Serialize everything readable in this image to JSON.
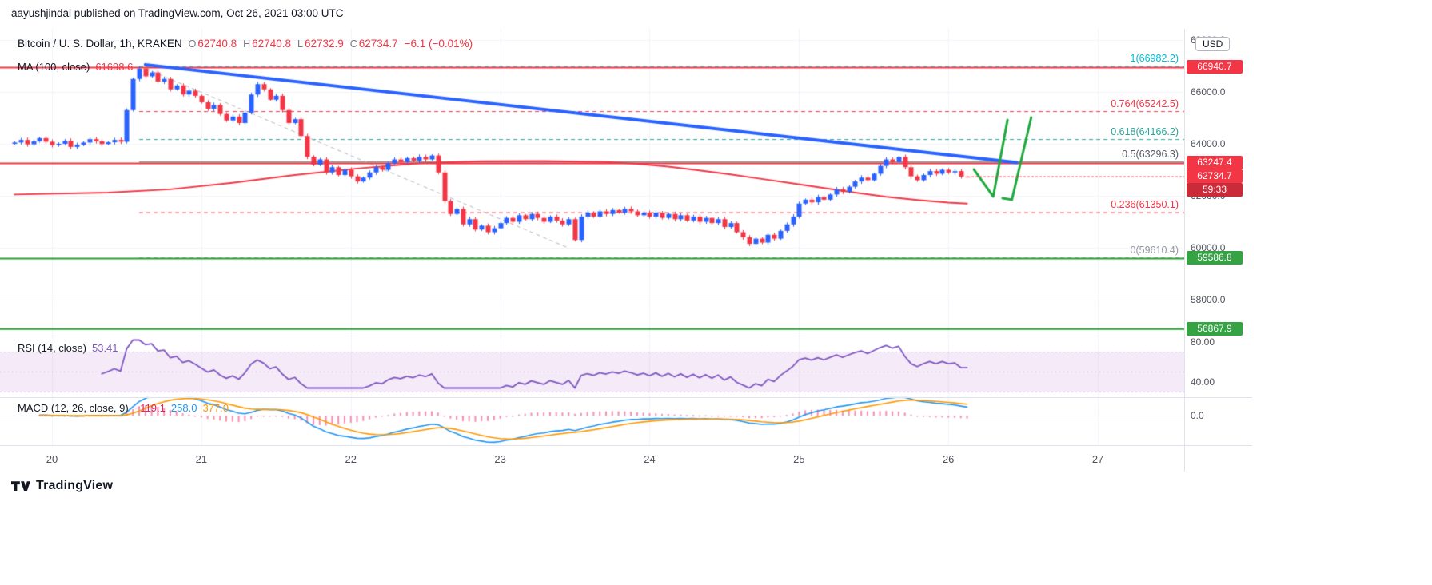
{
  "attribution": "aayushjindal published on TradingView.com, Oct 26, 2021 03:00 UTC",
  "header": {
    "symbol_title": "Bitcoin / U. S. Dollar, 1h, KRAKEN",
    "ohlc": [
      {
        "label": "O",
        "value": "62740.8"
      },
      {
        "label": "H",
        "value": "62740.8"
      },
      {
        "label": "L",
        "value": "62732.9"
      },
      {
        "label": "C",
        "value": "62734.7"
      }
    ],
    "change": "−6.1 (−0.01%)"
  },
  "ma_legend": {
    "label": "MA (100, close)",
    "value": "61698.6"
  },
  "rsi_legend": {
    "label": "RSI (14, close)",
    "value": "53.41"
  },
  "macd_legend": {
    "label": "MACD (12, 26, close, 9)",
    "values": [
      {
        "text": "−119.1",
        "color": "#e91e63"
      },
      {
        "text": "258.0",
        "color": "#2196f3"
      },
      {
        "text": "377.0",
        "color": "#ff9800"
      }
    ]
  },
  "fib_labels": [
    {
      "text": "1(66982.2)",
      "price": 66982.2,
      "color": "#00bcd4"
    },
    {
      "text": "0.764(65242.5)",
      "price": 65242.5,
      "color": "#f23645"
    },
    {
      "text": "0.618(64166.2)",
      "price": 64166.2,
      "color": "#26a69a"
    },
    {
      "text": "0.5(63296.3)",
      "price": 63296.3,
      "color": "#555a64"
    },
    {
      "text": "0.236(61350.1)",
      "price": 61350.1,
      "color": "#f23645"
    },
    {
      "text": "0(59610.4)",
      "price": 59610.4,
      "color": "#9598a1"
    }
  ],
  "price_axis": {
    "currency_button": "USD",
    "labels": [
      {
        "text": "68000.0",
        "price": 68000
      },
      {
        "text": "66000.0",
        "price": 66000
      },
      {
        "text": "64000.0",
        "price": 64000
      },
      {
        "text": "62000.0",
        "price": 62000
      },
      {
        "text": "60000.0",
        "price": 60000
      },
      {
        "text": "58000.0",
        "price": 58000
      }
    ],
    "badges": [
      {
        "text": "66940.7",
        "price": 66940.7,
        "bg": "#f23645"
      },
      {
        "text": "63247.4",
        "price": 63247.4,
        "bg": "#f23645"
      },
      {
        "text": "62734.7",
        "price": 62734.7,
        "bg": "#f23645"
      },
      {
        "text": "59:33",
        "price": 62734.7,
        "bg": "#c92b38",
        "offset": 17
      },
      {
        "text": "59586.8",
        "price": 59586.8,
        "bg": "#35a344"
      },
      {
        "text": "56867.9",
        "price": 56867.9,
        "bg": "#35a344"
      }
    ]
  },
  "rsi_axis": [
    {
      "text": "80.00",
      "value": 80
    },
    {
      "text": "40.00",
      "value": 40
    }
  ],
  "macd_axis": [
    {
      "text": "0.0",
      "value": 0
    }
  ],
  "time_axis": [
    "20",
    "21",
    "22",
    "23",
    "24",
    "25",
    "26",
    "27"
  ],
  "footer": {
    "brand": "TradingView"
  },
  "palette": {
    "up": "#2962ff",
    "down": "#f23645",
    "ma": "#f23645",
    "grid": "#f0f3fa",
    "rsi": "#7e57c2",
    "rsi_band": "rgba(186,104,200,0.14)",
    "rsi_band_edge": "#d3b8e0",
    "macd_line": "#2196f3",
    "macd_signal": "#ff9800",
    "macd_hist": "rgba(233,30,99,0.5)"
  },
  "chart_data": {
    "type": "candlestick",
    "symbol": "Bitcoin / U. S. Dollar",
    "exchange": "KRAKEN",
    "interval": "1h",
    "timestamp": "Oct 26, 2021 03:00 UTC",
    "last": {
      "o": 62740.8,
      "h": 62740.8,
      "l": 62732.9,
      "c": 62734.7,
      "change": -6.1,
      "change_pct": -0.01
    },
    "ylabel": "USD",
    "ylim_visible": [
      56600,
      68400
    ],
    "x_days_visible": [
      20,
      27
    ],
    "first_open": 64000,
    "hours_per_day": 24,
    "day20_start_index": 6,
    "closes": [
      64050,
      64150,
      63980,
      64100,
      64220,
      64080,
      63950,
      64000,
      64120,
      63880,
      63960,
      64050,
      64180,
      64100,
      63990,
      64060,
      64150,
      64080,
      65300,
      66500,
      66900,
      66600,
      66750,
      66400,
      66500,
      66100,
      66250,
      65900,
      66050,
      65850,
      65600,
      65350,
      65500,
      65150,
      64900,
      65050,
      64800,
      65200,
      65900,
      66300,
      66100,
      65700,
      65850,
      65300,
      64800,
      64950,
      64300,
      63500,
      63200,
      63400,
      62900,
      63100,
      62800,
      63000,
      62750,
      62550,
      62700,
      62900,
      63100,
      63000,
      63250,
      63400,
      63300,
      63450,
      63350,
      63500,
      63400,
      63550,
      62900,
      61800,
      61300,
      61500,
      60900,
      61100,
      60700,
      60850,
      60600,
      60750,
      60950,
      61150,
      61000,
      61250,
      61100,
      61300,
      61150,
      61000,
      61200,
      61050,
      60900,
      61100,
      60300,
      61200,
      61350,
      61200,
      61400,
      61300,
      61450,
      61350,
      61500,
      61400,
      61250,
      61350,
      61200,
      61350,
      61150,
      61300,
      61100,
      61250,
      61050,
      61200,
      61000,
      61150,
      60950,
      61100,
      60800,
      60950,
      60600,
      60400,
      60150,
      60350,
      60200,
      60500,
      60350,
      60650,
      60900,
      61200,
      61700,
      61850,
      61750,
      61950,
      61850,
      62050,
      62250,
      62150,
      62350,
      62550,
      62700,
      62600,
      62850,
      63150,
      63400,
      63300,
      63500,
      63100,
      62750,
      62600,
      62800,
      62950,
      62850,
      63000,
      62900,
      62950,
      62740.8,
      62734.7
    ],
    "ma100_current": 61698.6,
    "ma100_points": [
      [
        0,
        62050
      ],
      [
        15,
        62120
      ],
      [
        25,
        62250
      ],
      [
        35,
        62500
      ],
      [
        45,
        62800
      ],
      [
        55,
        63050
      ],
      [
        65,
        63250
      ],
      [
        75,
        63330
      ],
      [
        85,
        63340
      ],
      [
        95,
        63300
      ],
      [
        100,
        63230
      ],
      [
        105,
        63120
      ],
      [
        110,
        62980
      ],
      [
        115,
        62820
      ],
      [
        120,
        62650
      ],
      [
        125,
        62480
      ],
      [
        130,
        62300
      ],
      [
        135,
        62120
      ],
      [
        140,
        61960
      ],
      [
        145,
        61840
      ],
      [
        150,
        61740
      ],
      [
        153,
        61698.6
      ]
    ],
    "fib_start_index": 20,
    "fib_levels": [
      {
        "level": 1,
        "price": 66982.2,
        "color": "#00bcd4",
        "style": "dashed"
      },
      {
        "level": 0.764,
        "price": 65242.5,
        "color": "#f23645",
        "style": "dashed"
      },
      {
        "level": 0.618,
        "price": 64166.2,
        "color": "#26a69a",
        "style": "dashed"
      },
      {
        "level": 0.5,
        "price": 63296.3,
        "color": "#555a64",
        "style": "solid"
      },
      {
        "level": 0.236,
        "price": 61350.1,
        "color": "#f23645",
        "style": "dashed"
      },
      {
        "level": 0,
        "price": 59610.4,
        "color": "#9598a1",
        "style": "dashed"
      }
    ],
    "hlines": [
      {
        "price": 66940.7,
        "color": "#f23645"
      },
      {
        "price": 63247.4,
        "color": "#f23645"
      },
      {
        "price": 59586.8,
        "color": "#28a035"
      },
      {
        "price": 56867.9,
        "color": "#28a035"
      }
    ],
    "trendline": {
      "from": [
        21,
        67050
      ],
      "to": [
        161,
        63280
      ],
      "color": "#2962ff",
      "width": 4
    },
    "dashed_line": {
      "from": [
        21,
        66900
      ],
      "to": [
        89,
        59990
      ],
      "color": "#b2b5be"
    },
    "green_color": "#1fa83c",
    "green_marks": [
      {
        "points": [
          [
            154.1,
            63015
          ],
          [
            157.2,
            61970
          ],
          [
            159.5,
            64920
          ]
        ]
      },
      {
        "points": [
          [
            158.7,
            61910
          ],
          [
            160.2,
            61850
          ],
          [
            163.3,
            65015
          ]
        ]
      }
    ],
    "rsi": {
      "period": 14,
      "source": "close",
      "current": 53.41,
      "band": [
        30,
        70
      ],
      "scale_labels": [
        80,
        40
      ]
    },
    "macd": {
      "fast": 12,
      "slow": 26,
      "source": "close",
      "smoothing": 9,
      "histogram": -119.1,
      "macd": 258.0,
      "signal": 377.0
    }
  }
}
